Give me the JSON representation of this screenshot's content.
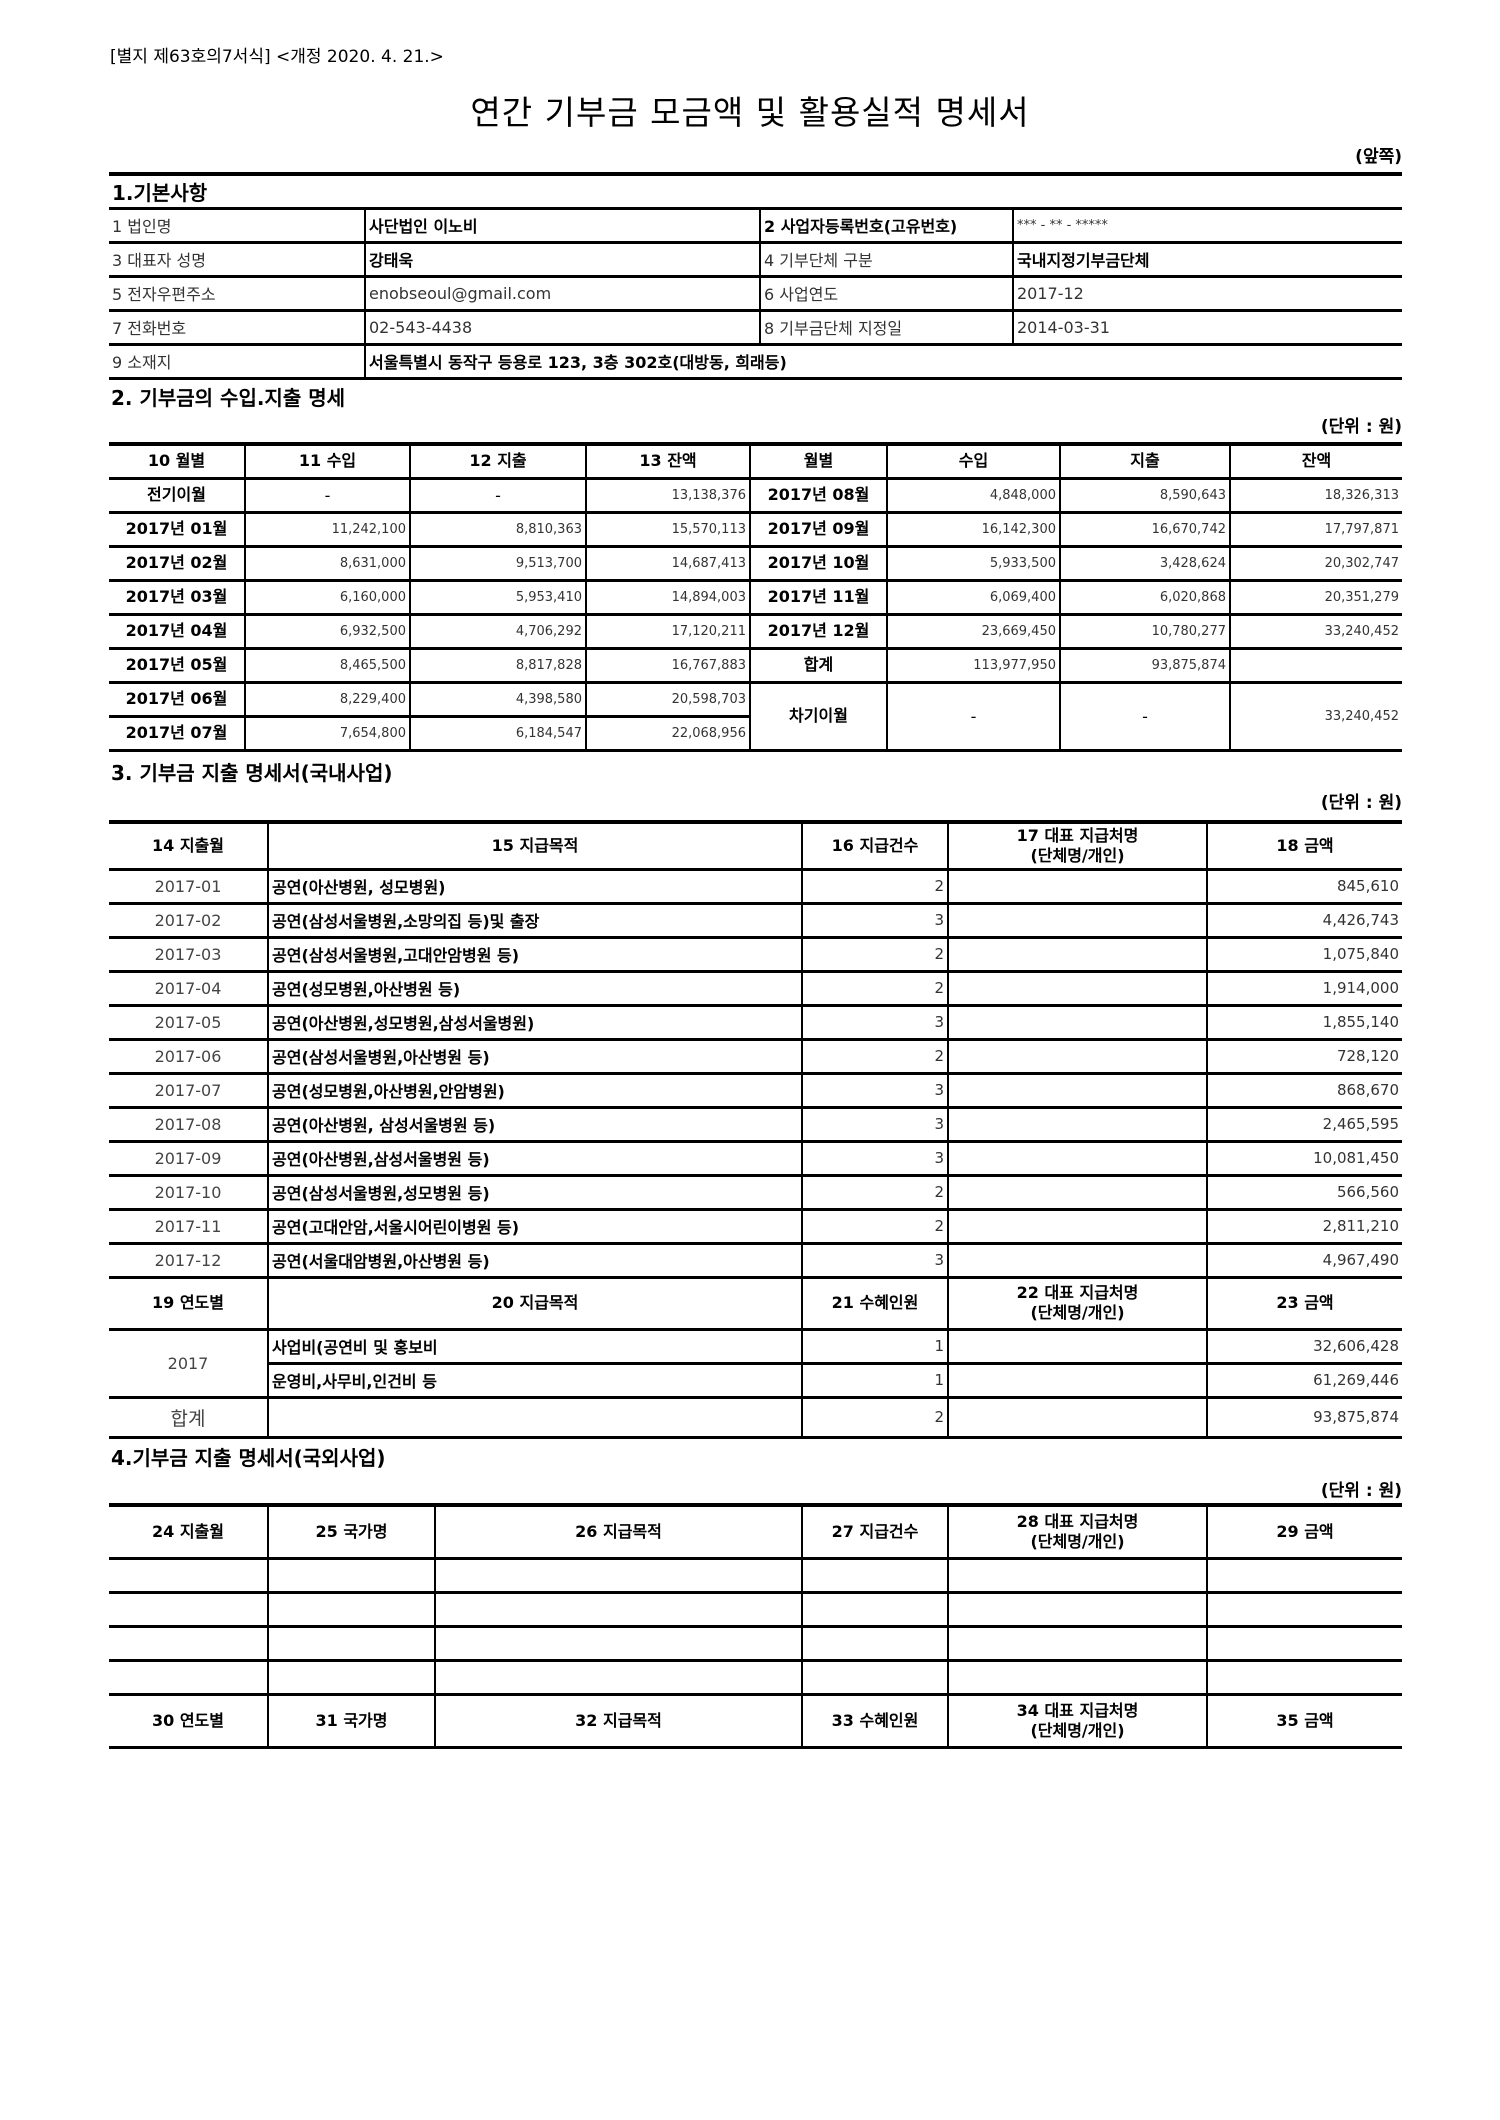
{
  "header": {
    "form_number": "[별지 제63호의7서식] <개정 2020. 4. 21.>",
    "title": "연간 기부금 모금액 및 활용실적 명세서",
    "side": "(앞쪽)"
  },
  "section1": {
    "title": "1.기본사항",
    "rows": [
      {
        "l1": "1 법인명",
        "v1": "사단법인   이노비",
        "l2": "2 사업자등록번호(고유번호)",
        "v2": "*** - ** - *****"
      },
      {
        "l1": "3 대표자 성명",
        "v1": "강태욱",
        "l2": "4 기부단체 구분",
        "v2": "국내지정기부금단체"
      },
      {
        "l1": "5 전자우편주소",
        "v1": "enobseoul@gmail.com",
        "l2": "6 사업연도",
        "v2": "2017-12"
      },
      {
        "l1": "7 전화번호",
        "v1": "02-543-4438",
        "l2": "8 기부금단체 지정일",
        "v2": "2014-03-31"
      }
    ],
    "address_label": "9 소재지",
    "address": "서울특별시 동작구 등용로 123, 3층 302호(대방동, 희래등)"
  },
  "section2": {
    "title": "2. 기부금의 수입.지출 명세",
    "unit": "(단위 : 원)",
    "headers": [
      "10 월별",
      "11 수입",
      "12 지출",
      "13 잔액",
      "월별",
      "수입",
      "지출",
      "잔액"
    ],
    "left_rows": [
      [
        "전기이월",
        "-",
        "-",
        "13,138,376"
      ],
      [
        "2017년 01월",
        "11,242,100",
        "8,810,363",
        "15,570,113"
      ],
      [
        "2017년 02월",
        "8,631,000",
        "9,513,700",
        "14,687,413"
      ],
      [
        "2017년 03월",
        "6,160,000",
        "5,953,410",
        "14,894,003"
      ],
      [
        "2017년 04월",
        "6,932,500",
        "4,706,292",
        "17,120,211"
      ],
      [
        "2017년 05월",
        "8,465,500",
        "8,817,828",
        "16,767,883"
      ],
      [
        "2017년 06월",
        "8,229,400",
        "4,398,580",
        "20,598,703"
      ],
      [
        "2017년 07월",
        "7,654,800",
        "6,184,547",
        "22,068,956"
      ]
    ],
    "right_rows": [
      [
        "2017년 08월",
        "4,848,000",
        "8,590,643",
        "18,326,313"
      ],
      [
        "2017년 09월",
        "16,142,300",
        "16,670,742",
        "17,797,871"
      ],
      [
        "2017년 10월",
        "5,933,500",
        "3,428,624",
        "20,302,747"
      ],
      [
        "2017년 11월",
        "6,069,400",
        "6,020,868",
        "20,351,279"
      ],
      [
        "2017년 12월",
        "23,669,450",
        "10,780,277",
        "33,240,452"
      ],
      [
        "합계",
        "113,977,950",
        "93,875,874",
        ""
      ],
      [
        "차기이월",
        "-",
        "-",
        "33,240,452"
      ]
    ]
  },
  "section3": {
    "title": "3. 기부금 지출 명세서(국내사업)",
    "unit": "(단위 : 원)",
    "headers": [
      "14 지출월",
      "15 지급목적",
      "16 지급건수",
      "17 대표 지급처명",
      "(단체명/개인)",
      "18 금액"
    ],
    "rows": [
      [
        "2017-01",
        "공연(아산병원, 성모병원)",
        "2",
        "",
        "845,610"
      ],
      [
        "2017-02",
        "공연(삼성서울병원,소망의집 등)및 출장",
        "3",
        "",
        "4,426,743"
      ],
      [
        "2017-03",
        "공연(삼성서울병원,고대안암병원 등)",
        "2",
        "",
        "1,075,840"
      ],
      [
        "2017-04",
        "공연(성모병원,아산병원 등)",
        "2",
        "",
        "1,914,000"
      ],
      [
        "2017-05",
        "공연(아산병원,성모병원,삼성서울병원)",
        "3",
        "",
        "1,855,140"
      ],
      [
        "2017-06",
        "공연(삼성서울병원,아산병원 등)",
        "2",
        "",
        "728,120"
      ],
      [
        "2017-07",
        "공연(성모병원,아산병원,안암병원)",
        "3",
        "",
        "868,670"
      ],
      [
        "2017-08",
        "공연(아산병원, 삼성서울병원 등)",
        "3",
        "",
        "2,465,595"
      ],
      [
        "2017-09",
        "공연(아산병원,삼성서울병원 등)",
        "3",
        "",
        "10,081,450"
      ],
      [
        "2017-10",
        "공연(삼성서울병원,성모병원 등)",
        "2",
        "",
        "566,560"
      ],
      [
        "2017-11",
        "공연(고대안암,서울시어린이병원 등)",
        "2",
        "",
        "2,811,210"
      ],
      [
        "2017-12",
        "공연(서울대암병원,아산병원 등)",
        "3",
        "",
        "4,967,490"
      ]
    ],
    "headers2": [
      "19 연도별",
      "20 지급목적",
      "21 수혜인원",
      "22 대표 지급처명",
      "(단체명/개인)",
      "23 금액"
    ],
    "year": "2017",
    "rows2": [
      [
        "사업비(공연비 및 홍보비",
        "1",
        "",
        "32,606,428"
      ],
      [
        "운영비,사무비,인건비 등",
        "1",
        "",
        "61,269,446"
      ]
    ],
    "total": [
      "합계",
      "",
      "2",
      "",
      "93,875,874"
    ]
  },
  "section4": {
    "title": "4.기부금 지출 명세서(국외사업)",
    "unit": "(단위 : 원)",
    "headers": [
      "24 지출월",
      "25 국가명",
      "26 지급목적",
      "27 지급건수",
      "28 대표 지급처명",
      "(단체명/개인)",
      "29 금액"
    ],
    "headers2": [
      "30 연도별",
      "31 국가명",
      "32 지급목적",
      "33 수혜인원",
      "34 대표 지급처명",
      "(단체명/개인)",
      "35 금액"
    ]
  }
}
